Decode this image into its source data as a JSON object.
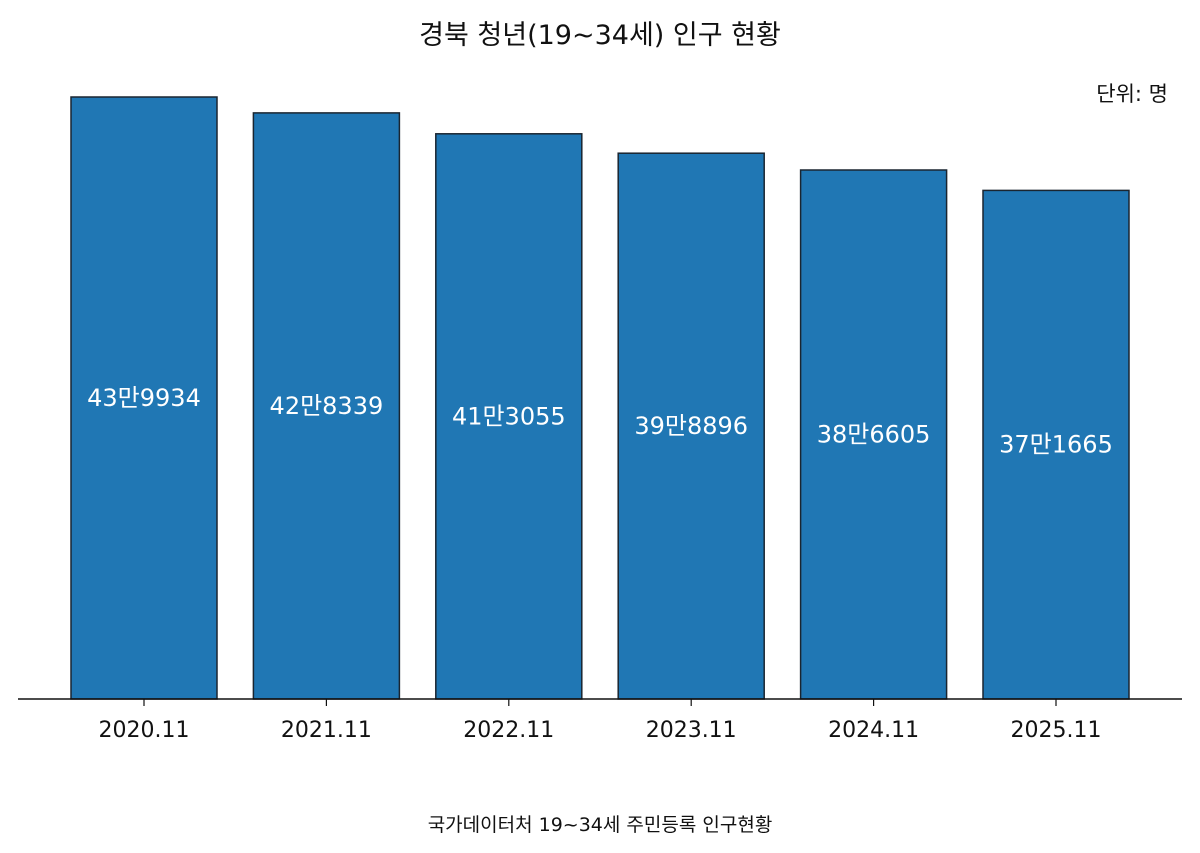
{
  "chart_data": {
    "type": "bar",
    "title": "경북 청년(19~34세) 인구 현황",
    "unit_label": "단위: 명",
    "source": "국가데이터처 19~34세 주민등록 인구현황",
    "categories": [
      "2020.11",
      "2021.11",
      "2022.11",
      "2023.11",
      "2024.11",
      "2025.11"
    ],
    "values": [
      439934,
      428339,
      413055,
      398896,
      386605,
      371665
    ],
    "data_labels": [
      "43만9934",
      "42만8339",
      "41만3055",
      "39만8896",
      "38만6605",
      "37만1665"
    ],
    "ylim": [
      0,
      450000
    ],
    "grid": false,
    "legend": "none",
    "colors": {
      "bar_fill": "#2077b4",
      "bar_edge": "#1a2530",
      "axis": "#111111",
      "data_label": "#ffffff"
    }
  }
}
